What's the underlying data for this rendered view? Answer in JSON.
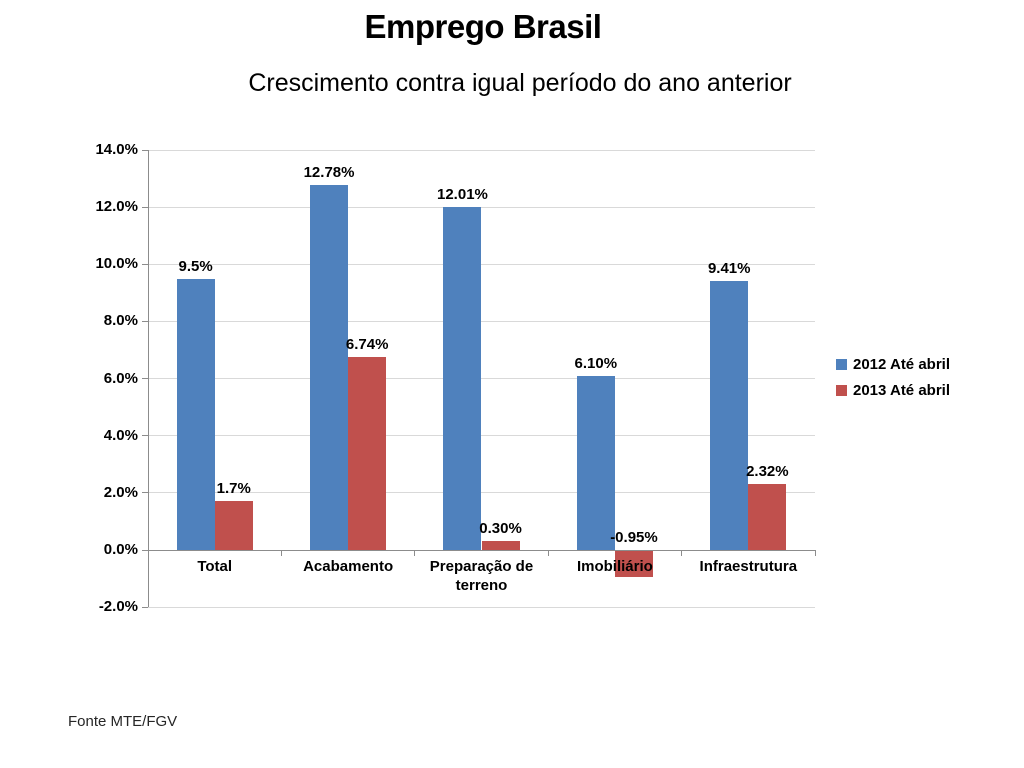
{
  "chart_data": {
    "type": "bar",
    "title": "Emprego Brasil",
    "subtitle": "Crescimento contra igual período do ano anterior",
    "categories": [
      "Total",
      "Acabamento",
      "Preparação de terreno",
      "Imobiliário",
      "Infraestrutura"
    ],
    "series": [
      {
        "name": "2012 Até abril",
        "color": "#4F81BD",
        "values": [
          9.5,
          12.78,
          12.01,
          6.1,
          9.41
        ],
        "labels": [
          "9.5%",
          "12.78%",
          "12.01%",
          "6.10%",
          "9.41%"
        ]
      },
      {
        "name": "2013 Até abril",
        "color": "#C0504D",
        "values": [
          1.7,
          6.74,
          0.3,
          -0.95,
          2.32
        ],
        "labels": [
          "1.7%",
          "6.74%",
          "0.30%",
          "-0.95%",
          "2.32%"
        ]
      }
    ],
    "ylim": [
      -2,
      14
    ],
    "ytick_step": 2,
    "ytick_suffix": "%",
    "ytick_decimals": 1,
    "grid": true,
    "legend_position": "right",
    "axis_color": "#8C8C8C",
    "gridline_color": "#D9D9D9",
    "label_color": "#000000"
  },
  "footer": {
    "text": "Fonte MTE/FGV"
  }
}
